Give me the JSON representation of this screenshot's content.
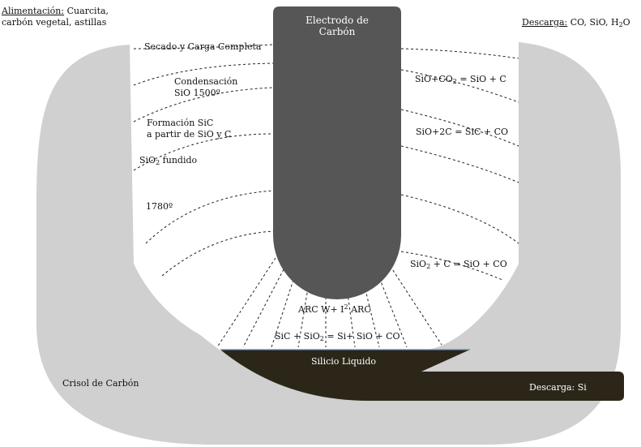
{
  "feed": {
    "title": "Alimentación:",
    "line1": " Cuarcita,",
    "line2": "carbón vegetal, astillas"
  },
  "discharge_top": {
    "title": "Descarga:",
    "pre": " CO, SiO, H",
    "sub": "2",
    "post": "O"
  },
  "electrode": {
    "line1": "Electrodo de",
    "line2": "Carbón"
  },
  "zones_left": {
    "drying": "Secado y Carga Completa",
    "cond1": "Condensación",
    "cond2": "SiO  1500º",
    "form1": "Formación SiC",
    "form2": "a partir de SiO y C",
    "sio2_pre": "SiO",
    "sio2_sub": "2",
    "sio2_post": " fundido",
    "temp": "1780º"
  },
  "reactions_right": {
    "r1_a": "SiO+CO",
    "r1_sub": "2",
    "r1_b": " = SiO + C",
    "r2": "SiO+2C = SiC + CO",
    "r3_a": "SiO",
    "r3_sub": "2",
    "r3_b": " + C = SiO + CO"
  },
  "arc": {
    "pre": "ARC W+ I",
    "sup": "2",
    "post": " ARC"
  },
  "reaction_bottom": {
    "a": "SiC + SiO",
    "sub": "2",
    "b": "  = Si+ SiO + CO"
  },
  "liquid_silicon": "Silicio Liquido",
  "crucible": "Crisol de Carbón",
  "discharge_si": "Descarga: Si",
  "colors": {
    "crucible": "#d0d0d0",
    "electrode": "#565656",
    "silicon": "#2b2618",
    "dashed": "#222222"
  }
}
